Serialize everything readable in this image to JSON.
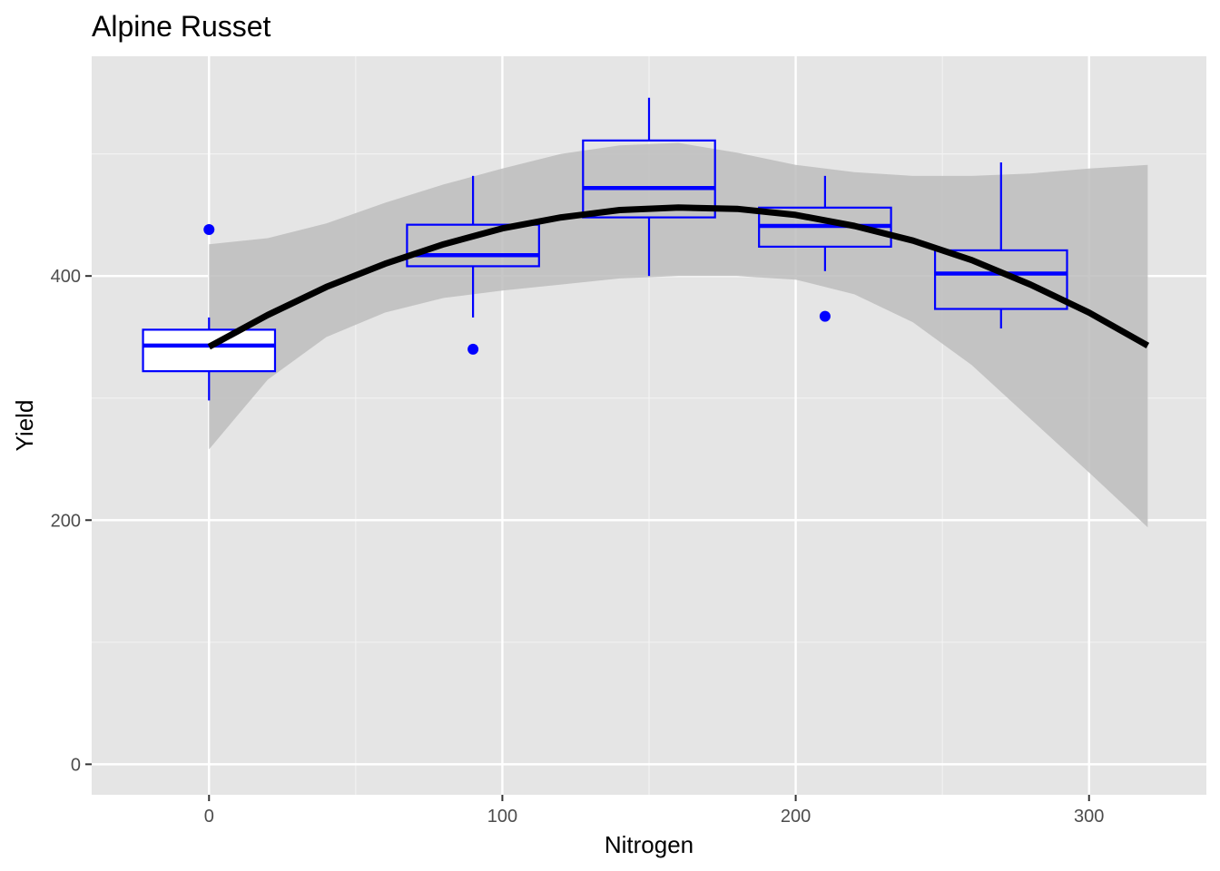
{
  "chart_data": {
    "type": "box",
    "title": "Alpine Russet",
    "xlabel": "Nitrogen",
    "ylabel": "Yield",
    "xlim": [
      -40,
      340
    ],
    "ylim": [
      -25,
      580
    ],
    "x_ticks": [
      0,
      100,
      200,
      300
    ],
    "x_tick_labels": [
      "0",
      "100",
      "200",
      "300"
    ],
    "y_ticks": [
      0,
      200,
      400
    ],
    "y_tick_labels": [
      "0",
      "200",
      "400"
    ],
    "grid": true,
    "box_color": "#0000ff",
    "boxes": [
      {
        "x": 0,
        "whisker_low": 298,
        "q1": 322,
        "median": 343,
        "q3": 356,
        "whisker_high": 366,
        "outliers": [
          438
        ]
      },
      {
        "x": 90,
        "whisker_low": 366,
        "q1": 408,
        "median": 417,
        "q3": 442,
        "whisker_high": 482,
        "outliers": [
          340
        ]
      },
      {
        "x": 150,
        "whisker_low": 400,
        "q1": 448,
        "median": 472,
        "q3": 511,
        "whisker_high": 546,
        "outliers": []
      },
      {
        "x": 210,
        "whisker_low": 404,
        "q1": 424,
        "median": 441,
        "q3": 456,
        "whisker_high": 482,
        "outliers": [
          367
        ]
      },
      {
        "x": 270,
        "whisker_low": 357,
        "q1": 373,
        "median": 402,
        "q3": 421,
        "whisker_high": 493,
        "outliers": []
      }
    ],
    "smooth": {
      "color": "#000000",
      "band_color": "#bdbdbd",
      "x": [
        0,
        20,
        40,
        60,
        80,
        100,
        120,
        140,
        160,
        180,
        200,
        220,
        240,
        260,
        280,
        300,
        320
      ],
      "y": [
        342,
        368,
        391,
        410,
        426,
        439,
        448,
        454,
        456,
        455,
        450,
        441,
        429,
        413,
        393,
        370,
        343
      ],
      "lower": [
        258,
        315,
        350,
        370,
        382,
        388,
        393,
        398,
        400,
        400,
        397,
        385,
        362,
        327,
        283,
        239,
        194
      ],
      "upper": [
        426,
        431,
        443,
        460,
        475,
        488,
        500,
        507,
        509,
        501,
        491,
        485,
        482,
        482,
        484,
        488,
        491
      ]
    }
  }
}
